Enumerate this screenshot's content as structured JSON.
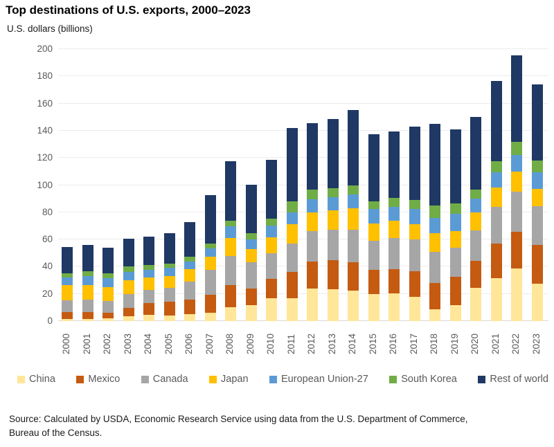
{
  "header": {
    "title": "Top destinations of U.S. exports, 2000–2023",
    "subtitle": "U.S. dollars (billions)"
  },
  "source": {
    "line1": "Source: Calculated by USDA, Economic Research Service using data from the U.S. Department of Commerce,",
    "line2": "Bureau of the Census."
  },
  "colors": {
    "china": "#FFE699",
    "mexico": "#C55A11",
    "canada": "#A6A6A6",
    "japan": "#FFC000",
    "eu27": "#5B9BD5",
    "south_korea": "#70AD47",
    "rest_of_world": "#1F3864",
    "gridline": "#ECECEC",
    "axis_text": "#595959"
  },
  "chart_data": {
    "type": "bar",
    "stacked": true,
    "title": "Top destinations of U.S. exports, 2000–2023",
    "ylabel": "U.S. dollars (billions)",
    "xlabel": "",
    "ylim": [
      0,
      200
    ],
    "ytick_interval": 20,
    "grid": true,
    "legend_position": "bottom",
    "categories": [
      "2000",
      "2001",
      "2002",
      "2003",
      "2004",
      "2005",
      "2006",
      "2007",
      "2008",
      "2009",
      "2010",
      "2011",
      "2012",
      "2013",
      "2014",
      "2015",
      "2016",
      "2017",
      "2018",
      "2019",
      "2020",
      "2021",
      "2022",
      "2023"
    ],
    "series": [
      {
        "name": "China",
        "color": "#FFE699",
        "values": [
          1.5,
          1.7,
          2.0,
          3.7,
          4.7,
          4.3,
          5.3,
          6.0,
          10.2,
          11.9,
          16.6,
          16.9,
          23.9,
          23.3,
          22.5,
          19.8,
          20.2,
          17.8,
          8.6,
          11.7,
          24.4,
          31.7,
          38.5,
          27.5
        ]
      },
      {
        "name": "Mexico",
        "color": "#C55A11",
        "values": [
          5.0,
          5.1,
          4.2,
          6.2,
          8.7,
          10.0,
          10.3,
          13.3,
          16.3,
          12.2,
          14.6,
          19.4,
          20.0,
          21.6,
          20.8,
          17.7,
          18.0,
          19.0,
          19.4,
          20.7,
          19.7,
          25.5,
          27.1,
          28.5
        ]
      },
      {
        "name": "Canada",
        "color": "#A6A6A6",
        "values": [
          9.0,
          9.0,
          8.5,
          9.8,
          9.7,
          10.2,
          13.2,
          18.4,
          21.3,
          19.0,
          18.7,
          20.7,
          22.4,
          22.4,
          24.0,
          21.7,
          22.7,
          23.1,
          23.0,
          21.7,
          22.4,
          26.6,
          29.4,
          28.3
        ]
      },
      {
        "name": "Japan",
        "color": "#FFC000",
        "values": [
          10.8,
          10.7,
          10.5,
          10.5,
          9.0,
          8.8,
          9.5,
          9.8,
          13.3,
          9.8,
          11.8,
          14.2,
          13.6,
          14.3,
          15.7,
          12.4,
          12.9,
          11.2,
          13.7,
          12.0,
          13.2,
          14.3,
          14.8,
          12.7
        ]
      },
      {
        "name": "European Union-27",
        "color": "#5B9BD5",
        "values": [
          6.0,
          6.7,
          6.5,
          5.9,
          5.4,
          5.8,
          5.3,
          5.8,
          8.5,
          7.2,
          8.5,
          8.5,
          9.8,
          9.5,
          10.1,
          11.0,
          10.0,
          11.2,
          11.3,
          12.8,
          10.2,
          11.2,
          12.3,
          12.3
        ]
      },
      {
        "name": "South Korea",
        "color": "#70AD47",
        "values": [
          3.1,
          3.4,
          3.3,
          3.9,
          3.6,
          3.4,
          3.6,
          3.9,
          4.0,
          4.4,
          5.1,
          8.5,
          6.8,
          6.8,
          6.8,
          5.7,
          6.7,
          6.8,
          8.8,
          7.4,
          6.8,
          8.4,
          9.7,
          8.9
        ]
      },
      {
        "name": "Rest of world",
        "color": "#1F3864",
        "values": [
          19.1,
          19.4,
          19.0,
          20.7,
          20.8,
          22.0,
          25.7,
          35.3,
          43.8,
          35.9,
          43.3,
          53.8,
          49.2,
          50.9,
          55.3,
          49.0,
          48.9,
          53.7,
          60.1,
          54.8,
          53.3,
          58.8,
          63.7,
          56.0
        ]
      }
    ]
  }
}
